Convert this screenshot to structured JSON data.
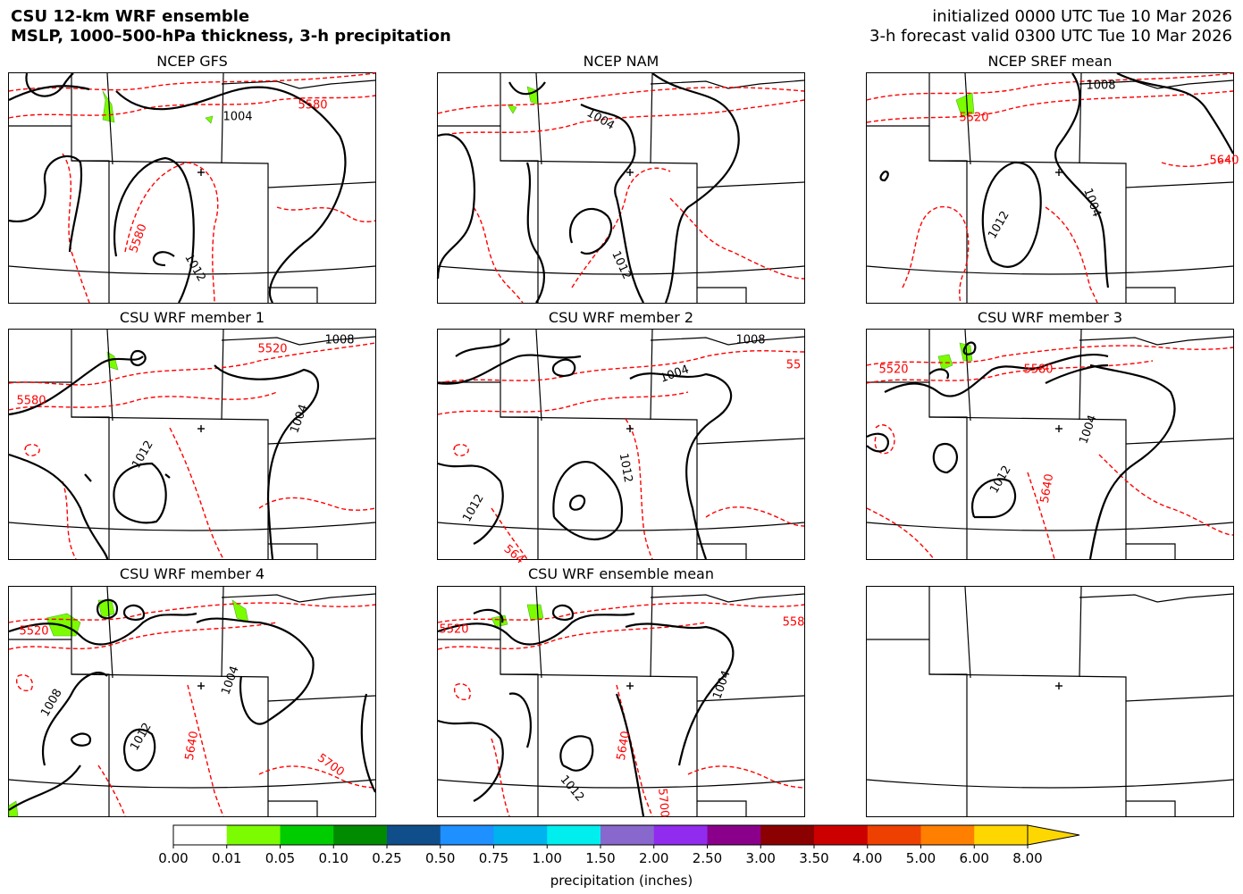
{
  "header": {
    "title_line1": "CSU 12-km WRF ensemble",
    "title_line2": "MSLP, 1000–500-hPa thickness, 3-h precipitation",
    "init_line": "initialized 0000 UTC Tue 10 Mar 2026",
    "valid_line": "3-h forecast valid 0300 UTC Tue 10 Mar 2026"
  },
  "panels": [
    {
      "title": "NCEP GFS",
      "labels": [
        {
          "t": "1004",
          "k": "p"
        },
        {
          "t": "5580",
          "k": "t"
        },
        {
          "t": "5580",
          "k": "t"
        },
        {
          "t": "1012",
          "k": "p"
        }
      ]
    },
    {
      "title": "NCEP NAM",
      "labels": [
        {
          "t": "1004",
          "k": "p"
        },
        {
          "t": "1012",
          "k": "p"
        }
      ]
    },
    {
      "title": "NCEP SREF mean",
      "labels": [
        {
          "t": "1008",
          "k": "p"
        },
        {
          "t": "5520",
          "k": "t"
        },
        {
          "t": "5640",
          "k": "t"
        },
        {
          "t": "1004",
          "k": "p"
        },
        {
          "t": "1012",
          "k": "p"
        }
      ]
    },
    {
      "title": "CSU WRF member 1",
      "labels": [
        {
          "t": "1008",
          "k": "p"
        },
        {
          "t": "5520",
          "k": "t"
        },
        {
          "t": "5580",
          "k": "t"
        },
        {
          "t": "1004",
          "k": "p"
        },
        {
          "t": "1012",
          "k": "p"
        }
      ]
    },
    {
      "title": "CSU WRF member 2",
      "labels": [
        {
          "t": "1008",
          "k": "p"
        },
        {
          "t": "55",
          "k": "t"
        },
        {
          "t": "1004",
          "k": "p"
        },
        {
          "t": "1012",
          "k": "p"
        },
        {
          "t": "1012",
          "k": "p"
        },
        {
          "t": "564",
          "k": "t"
        }
      ]
    },
    {
      "title": "CSU WRF member 3",
      "labels": [
        {
          "t": "5520",
          "k": "t"
        },
        {
          "t": "5580",
          "k": "t"
        },
        {
          "t": "1004",
          "k": "p"
        },
        {
          "t": "1012",
          "k": "p"
        },
        {
          "t": "5640",
          "k": "t"
        }
      ]
    },
    {
      "title": "CSU WRF member 4",
      "labels": [
        {
          "t": "5520",
          "k": "t"
        },
        {
          "t": "1008",
          "k": "p"
        },
        {
          "t": "1004",
          "k": "p"
        },
        {
          "t": "1012",
          "k": "p"
        },
        {
          "t": "5640",
          "k": "t"
        },
        {
          "t": "5700",
          "k": "t"
        }
      ]
    },
    {
      "title": "CSU WRF ensemble mean",
      "labels": [
        {
          "t": "5520",
          "k": "t"
        },
        {
          "t": "558",
          "k": "t"
        },
        {
          "t": "1004",
          "k": "p"
        },
        {
          "t": "5640",
          "k": "t"
        },
        {
          "t": "1012",
          "k": "p"
        },
        {
          "t": "5700",
          "k": "t"
        }
      ]
    },
    {
      "title": "",
      "labels": []
    }
  ],
  "colorbar": {
    "label": "precipitation (inches)",
    "ticks": [
      "0.00",
      "0.01",
      "0.05",
      "0.10",
      "0.25",
      "0.50",
      "0.75",
      "1.00",
      "1.50",
      "2.00",
      "2.50",
      "3.00",
      "3.50",
      "4.00",
      "5.00",
      "6.00",
      "8.00"
    ],
    "colors": [
      "#ffffff",
      "#7cfc00",
      "#00cd00",
      "#008b00",
      "#104e8b",
      "#1e90ff",
      "#00b2ee",
      "#00eeee",
      "#8968cd",
      "#912cee",
      "#8b008b",
      "#8b0000",
      "#cd0000",
      "#ee4000",
      "#ff7f00",
      "#ffd700"
    ]
  },
  "styles": {
    "mslp_color": "#000000",
    "thickness_color": "#ff0000",
    "boundary_color": "#000000",
    "precip_color": "#7cfc00"
  }
}
